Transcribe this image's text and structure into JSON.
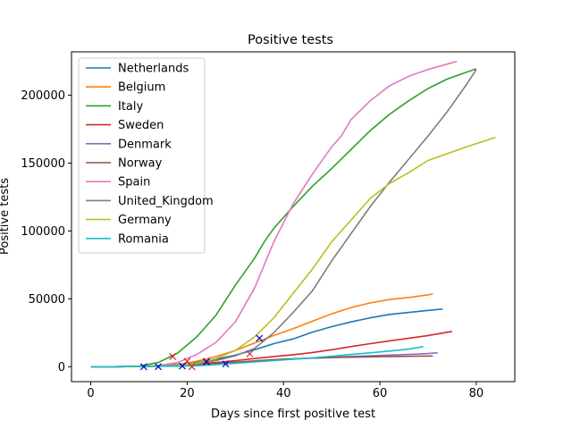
{
  "chart_data": {
    "type": "line",
    "title": "Positive tests",
    "xlabel": "Days since first positive test",
    "ylabel": "Positive tests",
    "xlim": [
      -4,
      88
    ],
    "ylim": [
      -11000,
      232000
    ],
    "xticks": [
      0,
      20,
      40,
      60,
      80
    ],
    "yticks": [
      0,
      50000,
      100000,
      150000,
      200000
    ],
    "legend_position": "top-left",
    "series": [
      {
        "name": "Netherlands",
        "color": "#1f77b4",
        "points": [
          [
            0,
            0
          ],
          [
            5,
            0
          ],
          [
            10,
            200
          ],
          [
            14,
            800
          ],
          [
            18,
            1700
          ],
          [
            22,
            3200
          ],
          [
            26,
            5500
          ],
          [
            30,
            8500
          ],
          [
            34,
            12500
          ],
          [
            38,
            17000
          ],
          [
            42,
            20500
          ],
          [
            46,
            25500
          ],
          [
            50,
            29500
          ],
          [
            54,
            33000
          ],
          [
            58,
            36000
          ],
          [
            62,
            38500
          ],
          [
            66,
            40000
          ],
          [
            70,
            41500
          ],
          [
            73,
            42500
          ]
        ]
      },
      {
        "name": "Belgium",
        "color": "#ff7f0e",
        "points": [
          [
            0,
            0
          ],
          [
            5,
            0
          ],
          [
            10,
            200
          ],
          [
            14,
            500
          ],
          [
            18,
            1500
          ],
          [
            22,
            4000
          ],
          [
            26,
            7500
          ],
          [
            30,
            12000
          ],
          [
            34,
            17500
          ],
          [
            38,
            23000
          ],
          [
            42,
            28000
          ],
          [
            46,
            33500
          ],
          [
            50,
            39000
          ],
          [
            54,
            43500
          ],
          [
            58,
            47000
          ],
          [
            62,
            49500
          ],
          [
            66,
            51000
          ],
          [
            71,
            53500
          ]
        ]
      },
      {
        "name": "Italy",
        "color": "#2ca02c",
        "points": [
          [
            0,
            0
          ],
          [
            5,
            0
          ],
          [
            10,
            500
          ],
          [
            14,
            3000
          ],
          [
            18,
            10000
          ],
          [
            22,
            22000
          ],
          [
            26,
            38000
          ],
          [
            30,
            60000
          ],
          [
            34,
            80000
          ],
          [
            36,
            92000
          ],
          [
            38,
            102000
          ],
          [
            42,
            118000
          ],
          [
            46,
            133000
          ],
          [
            50,
            146000
          ],
          [
            54,
            160000
          ],
          [
            58,
            174000
          ],
          [
            62,
            186000
          ],
          [
            66,
            196000
          ],
          [
            70,
            205000
          ],
          [
            74,
            212000
          ],
          [
            78,
            217000
          ],
          [
            80,
            219500
          ]
        ]
      },
      {
        "name": "Sweden",
        "color": "#d62728",
        "points": [
          [
            0,
            0
          ],
          [
            5,
            0
          ],
          [
            10,
            100
          ],
          [
            17,
            800
          ],
          [
            22,
            2000
          ],
          [
            26,
            3000
          ],
          [
            30,
            4500
          ],
          [
            34,
            6000
          ],
          [
            38,
            7500
          ],
          [
            42,
            8800
          ],
          [
            46,
            10500
          ],
          [
            50,
            12500
          ],
          [
            54,
            14800
          ],
          [
            58,
            17000
          ],
          [
            62,
            19000
          ],
          [
            66,
            21000
          ],
          [
            70,
            23000
          ],
          [
            75,
            26000
          ]
        ]
      },
      {
        "name": "Denmark",
        "color": "#9467bd",
        "points": [
          [
            0,
            0
          ],
          [
            5,
            0
          ],
          [
            10,
            100
          ],
          [
            16,
            600
          ],
          [
            20,
            1200
          ],
          [
            24,
            1800
          ],
          [
            28,
            2500
          ],
          [
            32,
            3300
          ],
          [
            36,
            4200
          ],
          [
            40,
            5200
          ],
          [
            44,
            6000
          ],
          [
            48,
            6700
          ],
          [
            52,
            7300
          ],
          [
            56,
            7800
          ],
          [
            60,
            8300
          ],
          [
            64,
            8800
          ],
          [
            68,
            9300
          ],
          [
            72,
            10200
          ]
        ]
      },
      {
        "name": "Norway",
        "color": "#8c564b",
        "points": [
          [
            0,
            0
          ],
          [
            5,
            0
          ],
          [
            10,
            100
          ],
          [
            15,
            400
          ],
          [
            20,
            1100
          ],
          [
            24,
            2000
          ],
          [
            28,
            3000
          ],
          [
            32,
            3800
          ],
          [
            36,
            4800
          ],
          [
            40,
            5600
          ],
          [
            44,
            6100
          ],
          [
            48,
            6500
          ],
          [
            52,
            6900
          ],
          [
            56,
            7200
          ],
          [
            60,
            7400
          ],
          [
            64,
            7600
          ],
          [
            68,
            7800
          ],
          [
            71,
            7900
          ]
        ]
      },
      {
        "name": "Spain",
        "color": "#e377c2",
        "points": [
          [
            0,
            0
          ],
          [
            5,
            0
          ],
          [
            10,
            200
          ],
          [
            14,
            800
          ],
          [
            18,
            3000
          ],
          [
            22,
            9000
          ],
          [
            26,
            18000
          ],
          [
            30,
            33000
          ],
          [
            34,
            58000
          ],
          [
            38,
            92000
          ],
          [
            42,
            120000
          ],
          [
            46,
            142000
          ],
          [
            50,
            162000
          ],
          [
            52,
            170000
          ],
          [
            54,
            182000
          ],
          [
            58,
            196000
          ],
          [
            62,
            207000
          ],
          [
            66,
            214000
          ],
          [
            70,
            219000
          ],
          [
            74,
            223000
          ],
          [
            76,
            225000
          ]
        ]
      },
      {
        "name": "United_Kingdom",
        "color": "#7f7f7f",
        "points": [
          [
            0,
            0
          ],
          [
            5,
            0
          ],
          [
            10,
            200
          ],
          [
            14,
            500
          ],
          [
            18,
            1000
          ],
          [
            22,
            2200
          ],
          [
            26,
            4500
          ],
          [
            30,
            8000
          ],
          [
            34,
            13500
          ],
          [
            38,
            25000
          ],
          [
            42,
            40000
          ],
          [
            46,
            56000
          ],
          [
            50,
            78000
          ],
          [
            54,
            98000
          ],
          [
            58,
            118000
          ],
          [
            62,
            136000
          ],
          [
            66,
            153000
          ],
          [
            70,
            170000
          ],
          [
            74,
            188000
          ],
          [
            78,
            208000
          ],
          [
            80,
            219000
          ]
        ]
      },
      {
        "name": "Germany",
        "color": "#bcbd22",
        "points": [
          [
            0,
            0
          ],
          [
            5,
            0
          ],
          [
            10,
            100
          ],
          [
            14,
            300
          ],
          [
            18,
            800
          ],
          [
            22,
            2500
          ],
          [
            26,
            6000
          ],
          [
            30,
            12000
          ],
          [
            34,
            22000
          ],
          [
            38,
            36000
          ],
          [
            42,
            54000
          ],
          [
            46,
            72000
          ],
          [
            50,
            92000
          ],
          [
            54,
            108000
          ],
          [
            58,
            124000
          ],
          [
            62,
            135000
          ],
          [
            66,
            143000
          ],
          [
            70,
            152000
          ],
          [
            74,
            157000
          ],
          [
            78,
            162000
          ],
          [
            84,
            169000
          ]
        ]
      },
      {
        "name": "Romania",
        "color": "#17becf",
        "points": [
          [
            0,
            0
          ],
          [
            5,
            0
          ],
          [
            10,
            100
          ],
          [
            14,
            200
          ],
          [
            18,
            400
          ],
          [
            22,
            700
          ],
          [
            26,
            1500
          ],
          [
            30,
            2500
          ],
          [
            34,
            3500
          ],
          [
            38,
            4500
          ],
          [
            42,
            5500
          ],
          [
            46,
            6500
          ],
          [
            50,
            7800
          ],
          [
            54,
            9000
          ],
          [
            58,
            10200
          ],
          [
            62,
            11500
          ],
          [
            66,
            13000
          ],
          [
            69,
            14800
          ]
        ]
      }
    ],
    "markers": [
      {
        "symbol": "x",
        "color": "#d62728",
        "x": 17,
        "y": 7500
      },
      {
        "symbol": "x",
        "color": "#d62728",
        "x": 20,
        "y": 4000
      },
      {
        "symbol": "x",
        "color": "#d62728",
        "x": 21,
        "y": 0
      },
      {
        "symbol": "x",
        "color": "#d62728",
        "x": 24,
        "y": 4000
      },
      {
        "symbol": "x",
        "color": "#d62728",
        "x": 33,
        "y": 9500
      },
      {
        "symbol": "x",
        "color": "#0000cc",
        "x": 11,
        "y": 0
      },
      {
        "symbol": "x",
        "color": "#0000cc",
        "x": 14,
        "y": 0
      },
      {
        "symbol": "x",
        "color": "#0000cc",
        "x": 19,
        "y": 500
      },
      {
        "symbol": "x",
        "color": "#0000cc",
        "x": 24,
        "y": 3500
      },
      {
        "symbol": "x",
        "color": "#0000cc",
        "x": 28,
        "y": 2000
      },
      {
        "symbol": "x",
        "color": "#0000cc",
        "x": 35,
        "y": 21000
      }
    ]
  }
}
